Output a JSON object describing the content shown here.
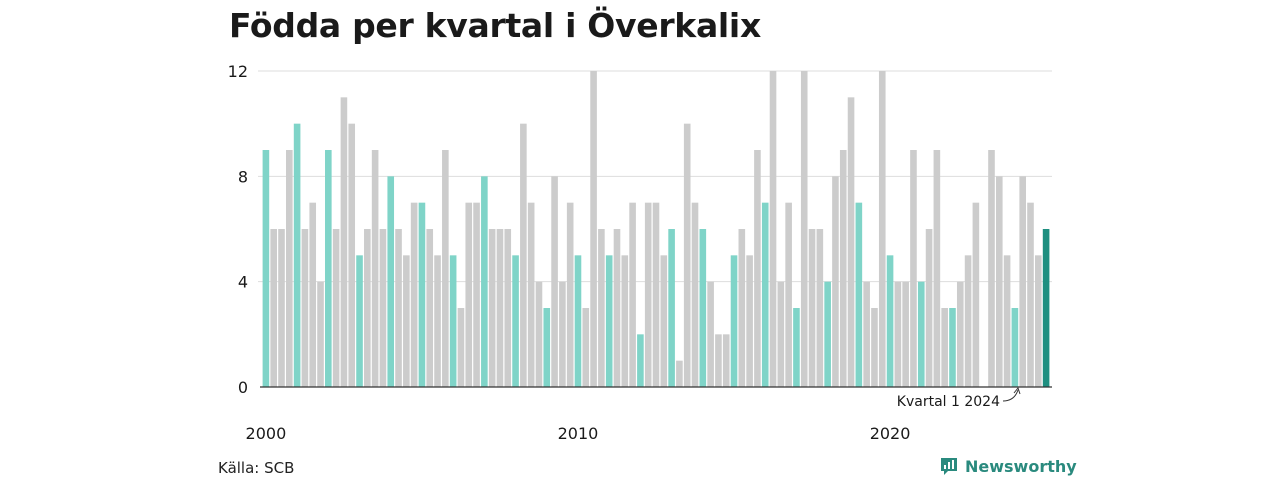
{
  "title": "Födda per kvartal i Överkalix",
  "source": "Källa: SCB",
  "brand": "Newsworthy",
  "annotation": "Kvartal 1 2024",
  "colors": {
    "gray": "#cccccc",
    "q1": "#7fd4c8",
    "latest": "#1e8f80",
    "grid": "#dddddd",
    "axis": "#333333",
    "brand": "#2a8a7e"
  },
  "chart_data": {
    "type": "bar",
    "x_tick_labels": [
      "2000",
      "2010",
      "2020"
    ],
    "y_ticks": [
      0,
      4,
      8,
      12
    ],
    "ylim": [
      0,
      12
    ],
    "grid": true,
    "highlight": "quarter 1 of each year in teal; latest quarter (Q1 2024) in dark teal",
    "values": [
      9,
      6,
      6,
      9,
      10,
      6,
      7,
      4,
      9,
      6,
      11,
      10,
      5,
      6,
      9,
      6,
      8,
      6,
      5,
      7,
      7,
      6,
      5,
      9,
      5,
      3,
      7,
      7,
      8,
      6,
      6,
      6,
      5,
      10,
      7,
      4,
      3,
      8,
      4,
      7,
      5,
      3,
      12,
      6,
      5,
      6,
      5,
      7,
      2,
      7,
      7,
      5,
      6,
      1,
      10,
      7,
      6,
      4,
      2,
      2,
      5,
      6,
      5,
      9,
      7,
      12,
      4,
      7,
      3,
      12,
      6,
      6,
      4,
      8,
      9,
      11,
      7,
      4,
      3,
      12,
      5,
      4,
      4,
      9,
      4,
      6,
      9,
      3,
      3,
      4,
      5,
      7,
      0,
      9,
      8,
      5,
      3,
      8,
      7,
      5,
      6
    ]
  }
}
